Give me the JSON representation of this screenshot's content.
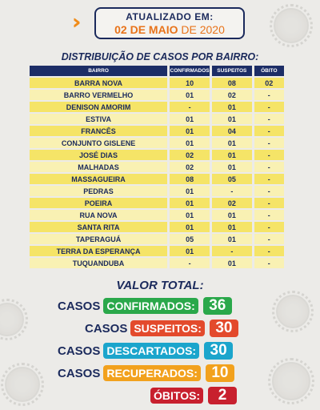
{
  "header": {
    "line1": "ATUALIZADO EM:",
    "line2_main": "02 DE MAIO",
    "line2_year": " DE 2020"
  },
  "section_title": "DISTRIBUIÇÃO DE CASOS POR BAIRRO:",
  "table": {
    "headers": [
      "BAIRRO",
      "CONFIRMADOS",
      "SUSPEITOS",
      "ÓBITO"
    ],
    "rows": [
      [
        "BARRA NOVA",
        "10",
        "08",
        "02"
      ],
      [
        "BARRO VERMELHO",
        "01",
        "02",
        "-"
      ],
      [
        "DENISON AMORIM",
        "-",
        "01",
        "-"
      ],
      [
        "ESTIVA",
        "01",
        "01",
        "-"
      ],
      [
        "FRANCÊS",
        "01",
        "04",
        "-"
      ],
      [
        "CONJUNTO GISLENE",
        "01",
        "01",
        "-"
      ],
      [
        "JOSÉ DIAS",
        "02",
        "01",
        "-"
      ],
      [
        "MALHADAS",
        "02",
        "01",
        "-"
      ],
      [
        "MASSAGUEIRA",
        "08",
        "05",
        "-"
      ],
      [
        "PEDRAS",
        "01",
        "-",
        "-"
      ],
      [
        "POEIRA",
        "01",
        "02",
        "-"
      ],
      [
        "RUA NOVA",
        "01",
        "01",
        "-"
      ],
      [
        "SANTA RITA",
        "01",
        "01",
        "-"
      ],
      [
        "TAPERAGUÁ",
        "05",
        "01",
        "-"
      ],
      [
        "TERRA DA ESPERANÇA",
        "01",
        "-",
        "-"
      ],
      [
        "TUQUANDUBA",
        "-",
        "01",
        "-"
      ]
    ]
  },
  "total_title": "VALOR TOTAL:",
  "summary": [
    {
      "word": "CASOS",
      "label": "CONFIRMADOS:",
      "value": "36",
      "color": "#2aa84a"
    },
    {
      "word": "CASOS",
      "label": "SUSPEITOS:",
      "value": "30",
      "color": "#e34a2c"
    },
    {
      "word": "CASOS",
      "label": "DESCARTADOS:",
      "value": "30",
      "color": "#1ba5cc"
    },
    {
      "word": "CASOS",
      "label": "RECUPERADOS:",
      "value": "10",
      "color": "#f2a11d"
    },
    {
      "word": "",
      "label": "ÓBITOS:",
      "value": "2",
      "color": "#c8202e"
    }
  ]
}
